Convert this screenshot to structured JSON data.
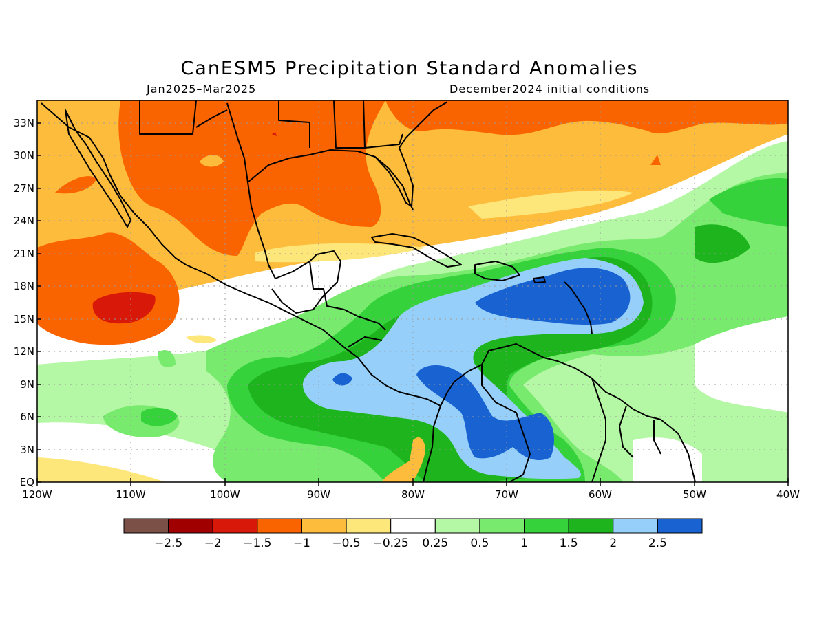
{
  "title": "CanESM5 Precipitation Standard Anomalies",
  "subtitle_left": "Jan2025–Mar2025",
  "subtitle_right": "December2024 initial conditions",
  "lat_labels": [
    "33N",
    "30N",
    "27N",
    "24N",
    "21N",
    "18N",
    "15N",
    "12N",
    "9N",
    "6N",
    "3N",
    "EQ"
  ],
  "lon_labels": [
    "120W",
    "110W",
    "100W",
    "90W",
    "80W",
    "70W",
    "60W",
    "50W",
    "40W"
  ],
  "colorbar": {
    "colors": [
      "#7b5046",
      "#a00000",
      "#d81808",
      "#fa6400",
      "#fdbc3c",
      "#fde67a",
      "#ffffff",
      "#b4f7a4",
      "#78ea6e",
      "#36d23c",
      "#1eb41e",
      "#96d0fa",
      "#1862d2"
    ],
    "labels": [
      "−2.5",
      "−2",
      "−1.5",
      "−1",
      "−0.5",
      "−0.25",
      "0.25",
      "0.5",
      "1",
      "1.5",
      "2",
      "2.5"
    ]
  }
}
